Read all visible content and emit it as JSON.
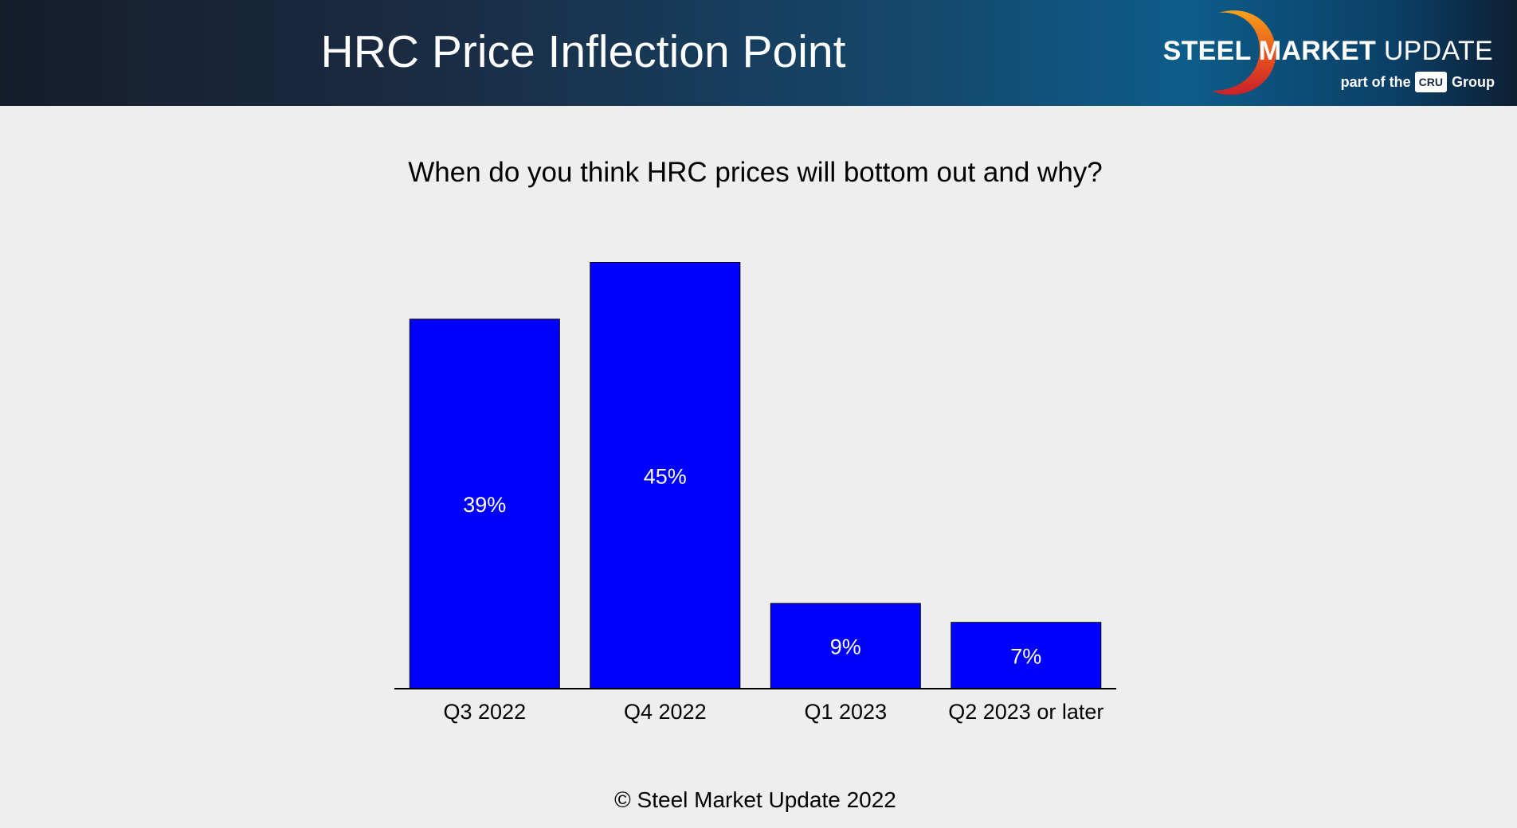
{
  "header": {
    "title": "HRC Price Inflection Point"
  },
  "logo": {
    "name_bold": "STEEL MARKET",
    "name_light": "UPDATE",
    "tagline_prefix": "part of the",
    "cru_badge": "CRU",
    "tagline_suffix": "Group",
    "ring_colors": [
      "#f7a21b",
      "#e8501e",
      "#c8202a"
    ]
  },
  "chart_data": {
    "type": "bar",
    "title": "When do you think HRC prices will bottom out and why?",
    "categories": [
      "Q3 2022",
      "Q4 2022",
      "Q1 2023",
      "Q2 2023 or later"
    ],
    "values": [
      39,
      45,
      9,
      7
    ],
    "data_labels": [
      "39%",
      "45%",
      "9%",
      "7%"
    ],
    "ylim": [
      0,
      100
    ],
    "xlabel": "",
    "ylabel": "",
    "grid": false,
    "bar_color": "#0000ff",
    "label_color": "#ffffff"
  },
  "footer": {
    "copyright": "© Steel Market Update 2022"
  }
}
